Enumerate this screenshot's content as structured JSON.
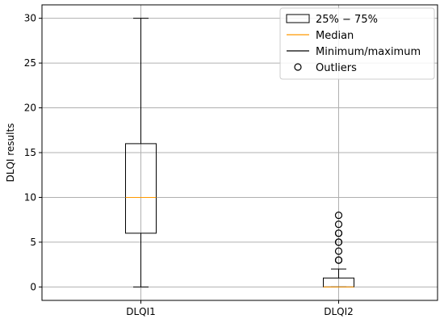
{
  "chart_data": {
    "type": "box",
    "ylabel": "DLQI results",
    "xlabel": "",
    "ylim": [
      -1.5,
      31.5
    ],
    "yticks": [
      0,
      5,
      10,
      15,
      20,
      25,
      30
    ],
    "grid": true,
    "categories": [
      "DLQI1",
      "DLQI2"
    ],
    "boxes": [
      {
        "category": "DLQI1",
        "min": 0,
        "q1": 6,
        "median": 10,
        "q3": 16,
        "max": 30,
        "outliers": []
      },
      {
        "category": "DLQI2",
        "min": 0,
        "q1": 0,
        "median": 0,
        "q3": 1,
        "max": 2,
        "outliers": [
          3,
          3,
          4,
          5,
          5,
          6,
          6,
          7,
          8
        ]
      }
    ],
    "legend": {
      "placement": "top-right",
      "entries": [
        {
          "label": "25% − 75%",
          "kind": "box"
        },
        {
          "label": "Median",
          "kind": "median"
        },
        {
          "label": "Minimum/maximum",
          "kind": "whisker"
        },
        {
          "label": "Outliers",
          "kind": "outlier"
        }
      ]
    },
    "colors": {
      "median": "#ff9900",
      "box": "#000000",
      "grid": "#b0b0b0"
    }
  }
}
